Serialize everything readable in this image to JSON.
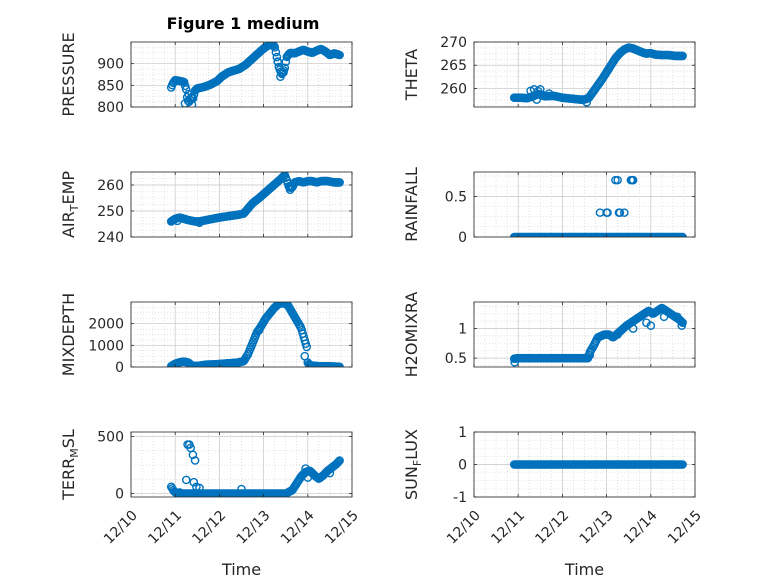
{
  "figure": {
    "title": "Figure 1 medium"
  },
  "chart_data": [
    {
      "type": "scatter",
      "ylabel": "PRESSURE",
      "ylim": [
        800,
        950
      ],
      "yticks": [
        800,
        850,
        900
      ],
      "xlim": [
        0,
        5
      ],
      "color": "#0072bd",
      "profile": [
        [
          0.91,
          845
        ],
        [
          0.95,
          855
        ],
        [
          1.0,
          862
        ],
        [
          1.1,
          860
        ],
        [
          1.2,
          858
        ],
        [
          1.25,
          840
        ],
        [
          1.28,
          815
        ],
        [
          1.32,
          812
        ],
        [
          1.36,
          822
        ],
        [
          1.4,
          818
        ],
        [
          1.45,
          838
        ],
        [
          1.5,
          843
        ],
        [
          1.6,
          845
        ],
        [
          1.7,
          848
        ],
        [
          1.8,
          852
        ],
        [
          1.95,
          860
        ],
        [
          2.05,
          870
        ],
        [
          2.2,
          880
        ],
        [
          2.35,
          885
        ],
        [
          2.45,
          888
        ],
        [
          2.6,
          898
        ],
        [
          2.75,
          912
        ],
        [
          2.9,
          926
        ],
        [
          3.0,
          935
        ],
        [
          3.1,
          942
        ],
        [
          3.2,
          944
        ],
        [
          3.25,
          940
        ],
        [
          3.3,
          915
        ],
        [
          3.35,
          890
        ],
        [
          3.42,
          875
        ],
        [
          3.48,
          890
        ],
        [
          3.52,
          915
        ],
        [
          3.6,
          925
        ],
        [
          3.7,
          924
        ],
        [
          3.8,
          928
        ],
        [
          3.9,
          932
        ],
        [
          4.0,
          928
        ],
        [
          4.1,
          925
        ],
        [
          4.2,
          930
        ],
        [
          4.3,
          934
        ],
        [
          4.4,
          928
        ],
        [
          4.5,
          920
        ],
        [
          4.6,
          924
        ],
        [
          4.72,
          920
        ]
      ],
      "points": [
        [
          1.22,
          808
        ],
        [
          1.3,
          830
        ],
        [
          1.38,
          805
        ],
        [
          3.32,
          905
        ],
        [
          3.38,
          870
        ],
        [
          3.45,
          880
        ]
      ]
    },
    {
      "type": "scatter",
      "ylabel": "THETA",
      "ylim": [
        256,
        270
      ],
      "yticks": [
        260,
        265,
        270
      ],
      "xlim": [
        0,
        5
      ],
      "color": "#0072bd",
      "profile": [
        [
          0.91,
          258
        ],
        [
          1.05,
          258
        ],
        [
          1.2,
          257.9
        ],
        [
          1.3,
          258.2
        ],
        [
          1.45,
          258.8
        ],
        [
          1.6,
          258.3
        ],
        [
          1.8,
          258.4
        ],
        [
          2.0,
          258.0
        ],
        [
          2.2,
          257.8
        ],
        [
          2.4,
          257.6
        ],
        [
          2.5,
          257.6
        ],
        [
          2.6,
          258.0
        ],
        [
          2.75,
          260.0
        ],
        [
          2.9,
          262.0
        ],
        [
          3.0,
          263.5
        ],
        [
          3.1,
          265.0
        ],
        [
          3.2,
          266.5
        ],
        [
          3.3,
          267.6
        ],
        [
          3.4,
          268.4
        ],
        [
          3.5,
          268.8
        ],
        [
          3.6,
          268.6
        ],
        [
          3.7,
          268.2
        ],
        [
          3.8,
          267.8
        ],
        [
          3.9,
          267.5
        ],
        [
          4.0,
          267.6
        ],
        [
          4.1,
          267.3
        ],
        [
          4.25,
          267.2
        ],
        [
          4.4,
          267.2
        ],
        [
          4.55,
          267.0
        ],
        [
          4.72,
          267.0
        ]
      ],
      "points": [
        [
          1.28,
          259.5
        ],
        [
          1.36,
          259.8
        ],
        [
          1.42,
          257.6
        ],
        [
          1.45,
          259.4
        ],
        [
          1.5,
          259.8
        ],
        [
          1.55,
          258.6
        ],
        [
          1.7,
          258.9
        ],
        [
          2.55,
          257.0
        ]
      ]
    },
    {
      "type": "scatter",
      "ylabel": "AIR_TEMP",
      "ylim": [
        240,
        265
      ],
      "yticks": [
        240,
        250,
        260
      ],
      "xlim": [
        0,
        5
      ],
      "color": "#0072bd",
      "profile": [
        [
          0.91,
          246
        ],
        [
          1.0,
          247
        ],
        [
          1.1,
          247.5
        ],
        [
          1.2,
          247
        ],
        [
          1.3,
          246.5
        ],
        [
          1.45,
          246
        ],
        [
          1.55,
          246
        ],
        [
          1.7,
          246.5
        ],
        [
          1.85,
          247
        ],
        [
          2.0,
          247.5
        ],
        [
          2.2,
          248
        ],
        [
          2.4,
          248.5
        ],
        [
          2.55,
          249
        ],
        [
          2.65,
          251
        ],
        [
          2.75,
          253
        ],
        [
          2.9,
          255
        ],
        [
          3.0,
          256.5
        ],
        [
          3.1,
          258
        ],
        [
          3.2,
          259.5
        ],
        [
          3.3,
          261
        ],
        [
          3.4,
          262.5
        ],
        [
          3.48,
          263.8
        ],
        [
          3.52,
          262
        ],
        [
          3.58,
          259
        ],
        [
          3.65,
          259
        ],
        [
          3.7,
          261
        ],
        [
          3.8,
          261.5
        ],
        [
          3.9,
          261
        ],
        [
          4.0,
          261.5
        ],
        [
          4.1,
          261.5
        ],
        [
          4.2,
          261
        ],
        [
          4.3,
          261.5
        ],
        [
          4.45,
          261.5
        ],
        [
          4.6,
          261
        ],
        [
          4.72,
          261
        ]
      ],
      "points": [
        [
          1.05,
          246.2
        ],
        [
          1.55,
          245.5
        ],
        [
          3.6,
          258.2
        ]
      ]
    },
    {
      "type": "scatter",
      "ylabel": "RAINFALL",
      "ylim": [
        0,
        0.8
      ],
      "yticks": [
        0,
        0.5
      ],
      "xlim": [
        0,
        5
      ],
      "color": "#0072bd",
      "profile": [
        [
          0.91,
          0
        ],
        [
          4.72,
          0
        ]
      ],
      "points": [
        [
          2.85,
          0.3
        ],
        [
          3.0,
          0.3
        ],
        [
          3.02,
          0.3
        ],
        [
          3.2,
          0.7
        ],
        [
          3.25,
          0.7
        ],
        [
          3.28,
          0.3
        ],
        [
          3.3,
          0.3
        ],
        [
          3.4,
          0.3
        ],
        [
          3.55,
          0.7
        ],
        [
          3.58,
          0.7
        ],
        [
          3.6,
          0.7
        ]
      ]
    },
    {
      "type": "scatter",
      "ylabel": "MIXDEPTH",
      "ylim": [
        0,
        3000
      ],
      "yticks": [
        0,
        1000,
        2000
      ],
      "xlim": [
        0,
        5
      ],
      "color": "#0072bd",
      "profile": [
        [
          0.91,
          40
        ],
        [
          1.0,
          150
        ],
        [
          1.1,
          220
        ],
        [
          1.2,
          250
        ],
        [
          1.3,
          200
        ],
        [
          1.4,
          40
        ],
        [
          1.55,
          60
        ],
        [
          1.7,
          110
        ],
        [
          1.85,
          120
        ],
        [
          2.0,
          140
        ],
        [
          2.2,
          170
        ],
        [
          2.4,
          200
        ],
        [
          2.55,
          270
        ],
        [
          2.65,
          600
        ],
        [
          2.75,
          1100
        ],
        [
          2.85,
          1600
        ],
        [
          2.95,
          1900
        ],
        [
          3.05,
          2250
        ],
        [
          3.15,
          2500
        ],
        [
          3.25,
          2750
        ],
        [
          3.35,
          2920
        ],
        [
          3.45,
          2950
        ],
        [
          3.55,
          2850
        ],
        [
          3.65,
          2500
        ],
        [
          3.75,
          2150
        ],
        [
          3.85,
          1800
        ],
        [
          3.92,
          1300
        ],
        [
          3.98,
          900
        ],
        [
          4.0,
          150
        ],
        [
          4.1,
          60
        ],
        [
          4.3,
          30
        ],
        [
          4.5,
          30
        ],
        [
          4.72,
          10
        ]
      ],
      "points": [
        [
          1.02,
          120
        ],
        [
          2.9,
          1700
        ],
        [
          3.93,
          500
        ]
      ]
    },
    {
      "type": "scatter",
      "ylabel": "H2OMIXRA",
      "ylim": [
        0.35,
        1.45
      ],
      "yticks": [
        0.5,
        1
      ],
      "xlim": [
        0,
        5
      ],
      "color": "#0072bd",
      "profile": [
        [
          0.91,
          0.49
        ],
        [
          1.0,
          0.5
        ],
        [
          1.5,
          0.5
        ],
        [
          2.0,
          0.5
        ],
        [
          2.5,
          0.5
        ],
        [
          2.58,
          0.5
        ],
        [
          2.62,
          0.6
        ],
        [
          2.7,
          0.7
        ],
        [
          2.8,
          0.85
        ],
        [
          2.95,
          0.9
        ],
        [
          3.05,
          0.9
        ],
        [
          3.15,
          0.85
        ],
        [
          3.3,
          0.95
        ],
        [
          3.45,
          1.05
        ],
        [
          3.55,
          1.1
        ],
        [
          3.65,
          1.15
        ],
        [
          3.75,
          1.2
        ],
        [
          3.85,
          1.25
        ],
        [
          3.95,
          1.3
        ],
        [
          4.05,
          1.25
        ],
        [
          4.15,
          1.3
        ],
        [
          4.25,
          1.35
        ],
        [
          4.35,
          1.3
        ],
        [
          4.45,
          1.25
        ],
        [
          4.55,
          1.2
        ],
        [
          4.65,
          1.15
        ],
        [
          4.72,
          1.1
        ]
      ],
      "points": [
        [
          0.92,
          0.43
        ],
        [
          2.62,
          0.55
        ],
        [
          3.25,
          0.9
        ],
        [
          3.6,
          1.0
        ],
        [
          3.9,
          1.1
        ],
        [
          4.0,
          1.05
        ],
        [
          4.3,
          1.2
        ],
        [
          4.6,
          1.2
        ],
        [
          4.7,
          1.05
        ]
      ]
    },
    {
      "type": "scatter",
      "ylabel": "TERR_MSL",
      "ylim": [
        -30,
        540
      ],
      "yticks": [
        0,
        500
      ],
      "xlim": [
        0,
        5
      ],
      "color": "#0072bd",
      "profile": [
        [
          0.91,
          60
        ],
        [
          0.97,
          20
        ],
        [
          1.05,
          0
        ],
        [
          1.2,
          0
        ],
        [
          1.3,
          0
        ],
        [
          1.5,
          0
        ],
        [
          1.7,
          0
        ],
        [
          2.0,
          0
        ],
        [
          2.3,
          0
        ],
        [
          2.6,
          0
        ],
        [
          2.9,
          0
        ],
        [
          3.2,
          0
        ],
        [
          3.5,
          0
        ],
        [
          3.65,
          30
        ],
        [
          3.75,
          90
        ],
        [
          3.85,
          150
        ],
        [
          3.95,
          190
        ],
        [
          4.05,
          200
        ],
        [
          4.15,
          160
        ],
        [
          4.25,
          130
        ],
        [
          4.35,
          160
        ],
        [
          4.45,
          200
        ],
        [
          4.55,
          230
        ],
        [
          4.65,
          260
        ],
        [
          4.72,
          290
        ]
      ],
      "points": [
        [
          1.28,
          430
        ],
        [
          1.32,
          430
        ],
        [
          1.35,
          400
        ],
        [
          1.4,
          340
        ],
        [
          1.45,
          290
        ],
        [
          1.42,
          100
        ],
        [
          1.48,
          60
        ],
        [
          1.55,
          50
        ],
        [
          1.25,
          120
        ],
        [
          1.1,
          10
        ],
        [
          2.5,
          40
        ],
        [
          3.95,
          220
        ],
        [
          4.0,
          140
        ],
        [
          4.5,
          180
        ]
      ]
    },
    {
      "type": "scatter",
      "ylabel": "SUN_FLUX",
      "ylim": [
        -1,
        1
      ],
      "yticks": [
        -1,
        0,
        1
      ],
      "xlim": [
        0,
        5
      ],
      "color": "#0072bd",
      "profile": [
        [
          0.91,
          0
        ],
        [
          4.72,
          0
        ]
      ],
      "points": []
    }
  ],
  "xaxis": {
    "ticks": [
      "12/10",
      "12/11",
      "12/12",
      "12/13",
      "12/14",
      "12/15"
    ],
    "label": "Time"
  }
}
